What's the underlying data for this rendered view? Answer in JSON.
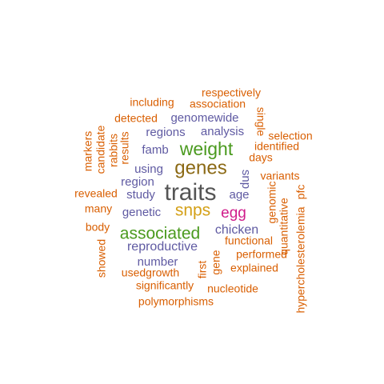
{
  "word_cloud": {
    "words": [
      {
        "text": "traits",
        "color": "#555555"
      },
      {
        "text": "genes",
        "color": "#8B6914"
      },
      {
        "text": "weight",
        "color": "#4A9A1E"
      },
      {
        "text": "snps",
        "color": "#D4A017"
      },
      {
        "text": "associated",
        "color": "#4A9A1E"
      },
      {
        "text": "egg",
        "color": "#D01C8B"
      },
      {
        "text": "chicken",
        "color": "#5F5AA2"
      },
      {
        "text": "reproductive",
        "color": "#5F5AA2"
      },
      {
        "text": "genetic",
        "color": "#5F5AA2"
      },
      {
        "text": "analysis",
        "color": "#5F5AA2"
      },
      {
        "text": "regions",
        "color": "#5F5AA2"
      },
      {
        "text": "genomewide",
        "color": "#5F5AA2"
      },
      {
        "text": "famb",
        "color": "#5F5AA2"
      },
      {
        "text": "using",
        "color": "#5F5AA2"
      },
      {
        "text": "region",
        "color": "#5F5AA2"
      },
      {
        "text": "study",
        "color": "#5F5AA2"
      },
      {
        "text": "age",
        "color": "#5F5AA2"
      },
      {
        "text": "snp",
        "color": "#5F5AA2"
      },
      {
        "text": "number",
        "color": "#5F5AA2"
      },
      {
        "text": "functional",
        "color": "#D95F02"
      },
      {
        "text": "respectively",
        "color": "#D95F02"
      },
      {
        "text": "including",
        "color": "#D95F02"
      },
      {
        "text": "association",
        "color": "#D95F02"
      },
      {
        "text": "detected",
        "color": "#D95F02"
      },
      {
        "text": "single",
        "color": "#D95F02"
      },
      {
        "text": "selection",
        "color": "#D95F02"
      },
      {
        "text": "identified",
        "color": "#D95F02"
      },
      {
        "text": "days",
        "color": "#D95F02"
      },
      {
        "text": "markers",
        "color": "#D95F02"
      },
      {
        "text": "candidate",
        "color": "#D95F02"
      },
      {
        "text": "rabbits",
        "color": "#D95F02"
      },
      {
        "text": "results",
        "color": "#D95F02"
      },
      {
        "text": "variants",
        "color": "#D95F02"
      },
      {
        "text": "genomic",
        "color": "#D95F02"
      },
      {
        "text": "quantitative",
        "color": "#D95F02"
      },
      {
        "text": "hypercholesterolemia",
        "color": "#D95F02"
      },
      {
        "text": "pfc",
        "color": "#D95F02"
      },
      {
        "text": "revealed",
        "color": "#D95F02"
      },
      {
        "text": "many",
        "color": "#D95F02"
      },
      {
        "text": "body",
        "color": "#D95F02"
      },
      {
        "text": "showed",
        "color": "#D95F02"
      },
      {
        "text": "gene",
        "color": "#D95F02"
      },
      {
        "text": "first",
        "color": "#D95F02"
      },
      {
        "text": "performed",
        "color": "#D95F02"
      },
      {
        "text": "explained",
        "color": "#D95F02"
      },
      {
        "text": "usedgrowth",
        "color": "#D95F02"
      },
      {
        "text": "significantly",
        "color": "#D95F02"
      },
      {
        "text": "nucleotide",
        "color": "#D95F02"
      },
      {
        "text": "polymorphisms",
        "color": "#D95F02"
      }
    ]
  }
}
